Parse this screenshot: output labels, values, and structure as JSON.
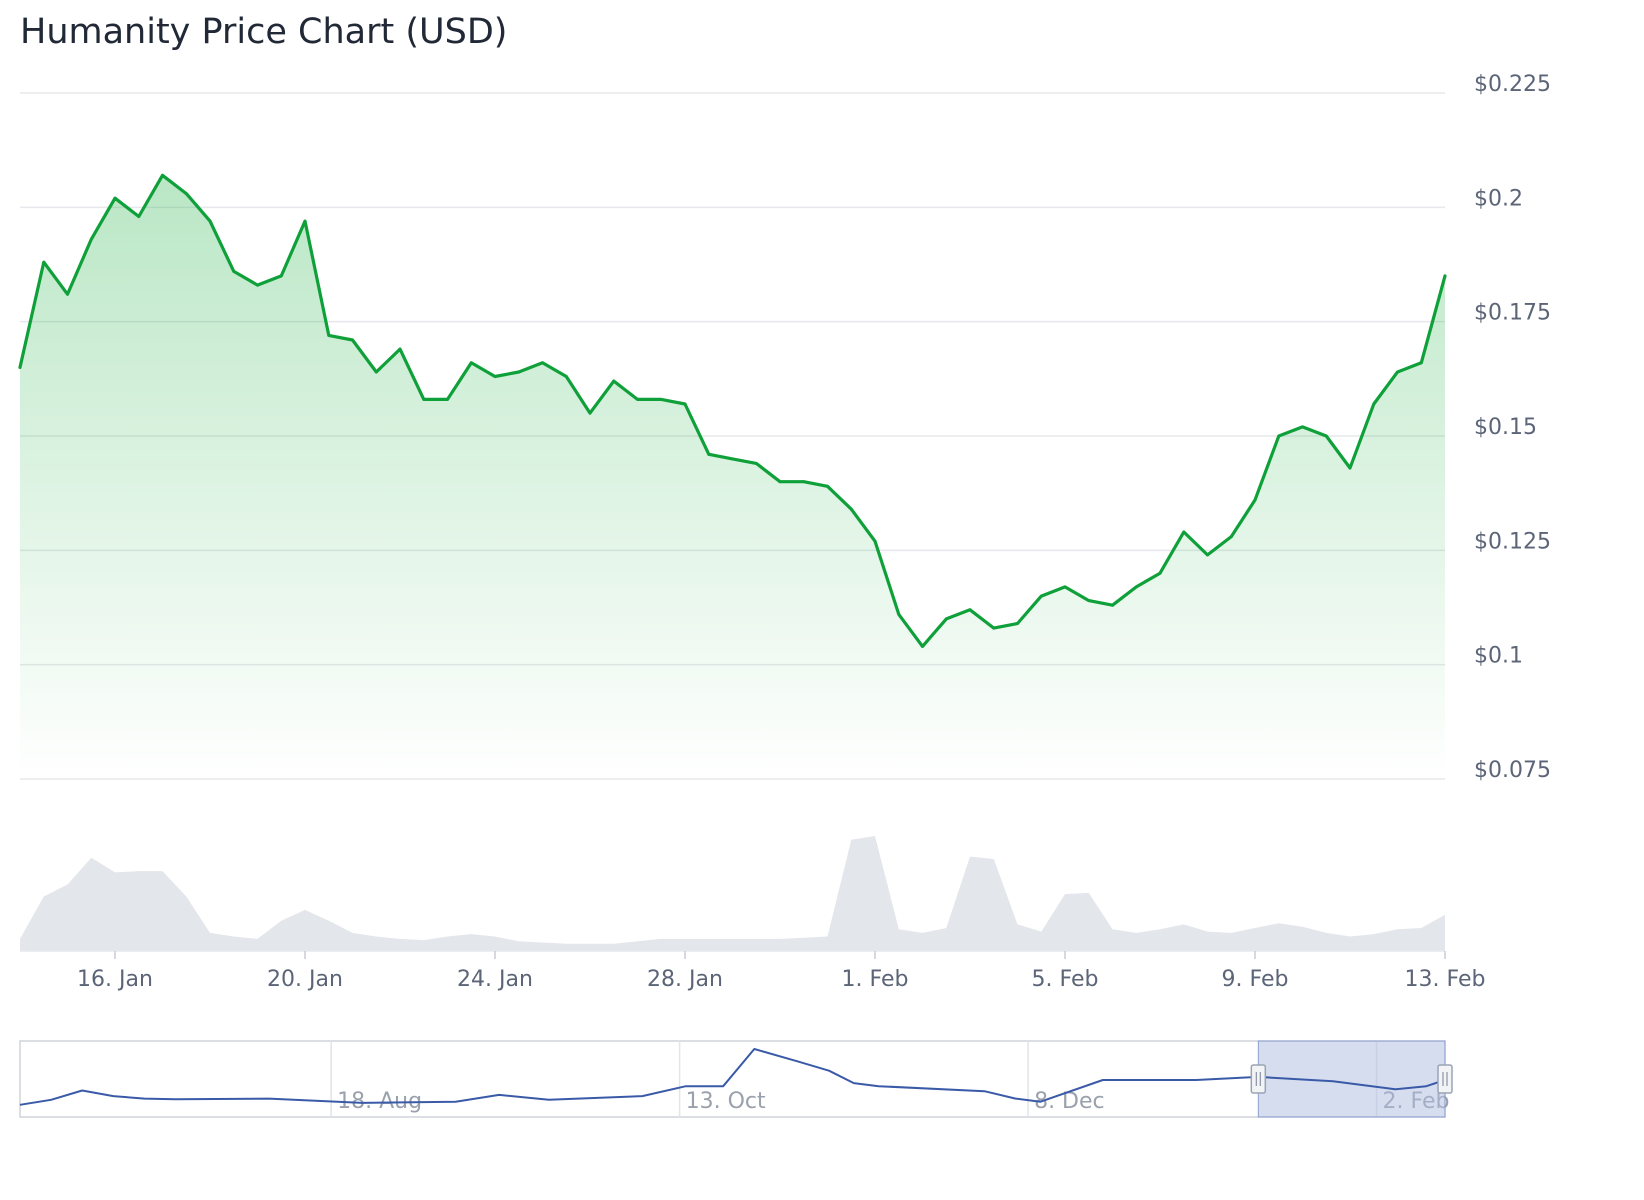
{
  "title": "Humanity Price Chart (USD)",
  "colors": {
    "price_line": "#0fa03a",
    "area_fill": "#27b34a",
    "volume": "#e3e6ea",
    "gridline": "#e6e8ec",
    "navigator_line": "#3a5aa8",
    "navigator_selection": "#aebce0"
  },
  "chart_data": {
    "type": "line",
    "price": {
      "name": "Price",
      "x_unit": "date",
      "x_start": "2025-01-14",
      "x_end": "2025-02-13",
      "y_unit": "USD",
      "ylim": [
        0.075,
        0.225
      ],
      "y_ticks": [
        0.075,
        0.1,
        0.125,
        0.15,
        0.175,
        0.2,
        0.225
      ],
      "y_tick_labels": [
        "$0.075",
        "$0.1",
        "$0.125",
        "$0.15",
        "$0.175",
        "$0.2",
        "$0.225"
      ],
      "x_ticks": [
        "2025-01-16",
        "2025-01-20",
        "2025-01-24",
        "2025-01-28",
        "2025-02-01",
        "2025-02-05",
        "2025-02-09",
        "2025-02-13"
      ],
      "x_tick_labels": [
        "16. Jan",
        "20. Jan",
        "24. Jan",
        "28. Jan",
        "1. Feb",
        "5. Feb",
        "9. Feb",
        "13. Feb"
      ],
      "grid": true,
      "area_fill": true,
      "points": [
        [
          "2025-01-14",
          0.165
        ],
        [
          "2025-01-14T12:00",
          0.188
        ],
        [
          "2025-01-15",
          0.181
        ],
        [
          "2025-01-15T12:00",
          0.193
        ],
        [
          "2025-01-16",
          0.202
        ],
        [
          "2025-01-16T12:00",
          0.198
        ],
        [
          "2025-01-17",
          0.207
        ],
        [
          "2025-01-17T12:00",
          0.203
        ],
        [
          "2025-01-18",
          0.197
        ],
        [
          "2025-01-18T12:00",
          0.186
        ],
        [
          "2025-01-19",
          0.183
        ],
        [
          "2025-01-19T12:00",
          0.185
        ],
        [
          "2025-01-20",
          0.197
        ],
        [
          "2025-01-20T12:00",
          0.172
        ],
        [
          "2025-01-21",
          0.171
        ],
        [
          "2025-01-21T12:00",
          0.164
        ],
        [
          "2025-01-22",
          0.169
        ],
        [
          "2025-01-22T12:00",
          0.158
        ],
        [
          "2025-01-23",
          0.158
        ],
        [
          "2025-01-23T12:00",
          0.166
        ],
        [
          "2025-01-24",
          0.163
        ],
        [
          "2025-01-24T12:00",
          0.164
        ],
        [
          "2025-01-25",
          0.166
        ],
        [
          "2025-01-25T12:00",
          0.163
        ],
        [
          "2025-01-26",
          0.155
        ],
        [
          "2025-01-26T12:00",
          0.162
        ],
        [
          "2025-01-27",
          0.158
        ],
        [
          "2025-01-27T12:00",
          0.158
        ],
        [
          "2025-01-28",
          0.157
        ],
        [
          "2025-01-28T12:00",
          0.146
        ],
        [
          "2025-01-29",
          0.145
        ],
        [
          "2025-01-29T12:00",
          0.144
        ],
        [
          "2025-01-30",
          0.14
        ],
        [
          "2025-01-30T12:00",
          0.14
        ],
        [
          "2025-01-31",
          0.139
        ],
        [
          "2025-01-31T12:00",
          0.134
        ],
        [
          "2025-02-01",
          0.127
        ],
        [
          "2025-02-01T12:00",
          0.111
        ],
        [
          "2025-02-02",
          0.104
        ],
        [
          "2025-02-02T12:00",
          0.11
        ],
        [
          "2025-02-03",
          0.112
        ],
        [
          "2025-02-03T12:00",
          0.108
        ],
        [
          "2025-02-04",
          0.109
        ],
        [
          "2025-02-04T12:00",
          0.115
        ],
        [
          "2025-02-05",
          0.117
        ],
        [
          "2025-02-05T12:00",
          0.114
        ],
        [
          "2025-02-06",
          0.113
        ],
        [
          "2025-02-06T12:00",
          0.117
        ],
        [
          "2025-02-07",
          0.12
        ],
        [
          "2025-02-07T12:00",
          0.129
        ],
        [
          "2025-02-08",
          0.124
        ],
        [
          "2025-02-08T12:00",
          0.128
        ],
        [
          "2025-02-09",
          0.136
        ],
        [
          "2025-02-09T12:00",
          0.15
        ],
        [
          "2025-02-10",
          0.152
        ],
        [
          "2025-02-10T12:00",
          0.15
        ],
        [
          "2025-02-11",
          0.143
        ],
        [
          "2025-02-11T12:00",
          0.157
        ],
        [
          "2025-02-12",
          0.164
        ],
        [
          "2025-02-12T12:00",
          0.166
        ],
        [
          "2025-02-13",
          0.185
        ]
      ]
    },
    "volume": {
      "name": "Volume",
      "scale": "relative",
      "ylim": [
        0,
        1
      ],
      "points": [
        [
          "2025-01-14",
          0.1
        ],
        [
          "2025-01-14T12:00",
          0.45
        ],
        [
          "2025-01-15",
          0.55
        ],
        [
          "2025-01-15T12:00",
          0.77
        ],
        [
          "2025-01-16",
          0.65
        ],
        [
          "2025-01-16T12:00",
          0.66
        ],
        [
          "2025-01-17",
          0.66
        ],
        [
          "2025-01-17T12:00",
          0.45
        ],
        [
          "2025-01-18",
          0.15
        ],
        [
          "2025-01-18T12:00",
          0.12
        ],
        [
          "2025-01-19",
          0.1
        ],
        [
          "2025-01-19T12:00",
          0.25
        ],
        [
          "2025-01-20",
          0.34
        ],
        [
          "2025-01-20T12:00",
          0.25
        ],
        [
          "2025-01-21",
          0.15
        ],
        [
          "2025-01-21T12:00",
          0.12
        ],
        [
          "2025-01-22",
          0.1
        ],
        [
          "2025-01-22T12:00",
          0.09
        ],
        [
          "2025-01-23",
          0.12
        ],
        [
          "2025-01-23T12:00",
          0.14
        ],
        [
          "2025-01-24",
          0.12
        ],
        [
          "2025-01-24T12:00",
          0.08
        ],
        [
          "2025-01-25",
          0.07
        ],
        [
          "2025-01-25T12:00",
          0.06
        ],
        [
          "2025-01-26",
          0.06
        ],
        [
          "2025-01-26T12:00",
          0.06
        ],
        [
          "2025-01-27",
          0.08
        ],
        [
          "2025-01-27T12:00",
          0.1
        ],
        [
          "2025-01-28",
          0.1
        ],
        [
          "2025-01-28T12:00",
          0.1
        ],
        [
          "2025-01-29",
          0.1
        ],
        [
          "2025-01-29T12:00",
          0.1
        ],
        [
          "2025-01-30",
          0.1
        ],
        [
          "2025-01-30T12:00",
          0.11
        ],
        [
          "2025-01-31",
          0.12
        ],
        [
          "2025-01-31T12:00",
          0.92
        ],
        [
          "2025-02-01",
          0.95
        ],
        [
          "2025-02-01T12:00",
          0.18
        ],
        [
          "2025-02-02",
          0.15
        ],
        [
          "2025-02-02T12:00",
          0.19
        ],
        [
          "2025-02-03",
          0.78
        ],
        [
          "2025-02-03T12:00",
          0.76
        ],
        [
          "2025-02-04",
          0.22
        ],
        [
          "2025-02-04T12:00",
          0.16
        ],
        [
          "2025-02-05",
          0.47
        ],
        [
          "2025-02-05T12:00",
          0.48
        ],
        [
          "2025-02-06",
          0.18
        ],
        [
          "2025-02-06T12:00",
          0.15
        ],
        [
          "2025-02-07",
          0.18
        ],
        [
          "2025-02-07T12:00",
          0.22
        ],
        [
          "2025-02-08",
          0.16
        ],
        [
          "2025-02-08T12:00",
          0.15
        ],
        [
          "2025-02-09",
          0.19
        ],
        [
          "2025-02-09T12:00",
          0.23
        ],
        [
          "2025-02-10",
          0.2
        ],
        [
          "2025-02-10T12:00",
          0.15
        ],
        [
          "2025-02-11",
          0.12
        ],
        [
          "2025-02-11T12:00",
          0.14
        ],
        [
          "2025-02-12",
          0.18
        ],
        [
          "2025-02-12T12:00",
          0.19
        ],
        [
          "2025-02-13",
          0.3
        ]
      ]
    },
    "navigator": {
      "x_unit": "date",
      "x_start": "2024-06-29",
      "x_end": "2025-02-13",
      "x_ticks": [
        "2024-08-18",
        "2024-10-13",
        "2024-12-08",
        "2025-02-02"
      ],
      "x_tick_labels": [
        "18. Aug",
        "13. Oct",
        "8. Dec",
        "2. Feb"
      ],
      "selection": [
        "2025-01-14",
        "2025-02-13"
      ],
      "points": [
        [
          "2024-06-29",
          0.1
        ],
        [
          "2024-07-04",
          0.18
        ],
        [
          "2024-07-09",
          0.33
        ],
        [
          "2024-07-14",
          0.24
        ],
        [
          "2024-07-19",
          0.2
        ],
        [
          "2024-07-24",
          0.19
        ],
        [
          "2024-08-08",
          0.2
        ],
        [
          "2024-08-23",
          0.13
        ],
        [
          "2024-09-07",
          0.15
        ],
        [
          "2024-09-14",
          0.26
        ],
        [
          "2024-09-22",
          0.18
        ],
        [
          "2024-10-07",
          0.24
        ],
        [
          "2024-10-14",
          0.4
        ],
        [
          "2024-10-20",
          0.4
        ],
        [
          "2024-10-25",
          1
        ],
        [
          "2024-11-01",
          0.8
        ],
        [
          "2024-11-06",
          0.65
        ],
        [
          "2024-11-10",
          0.45
        ],
        [
          "2024-11-14",
          0.4
        ],
        [
          "2024-12-01",
          0.32
        ],
        [
          "2024-12-06",
          0.2
        ],
        [
          "2024-12-10",
          0.15
        ],
        [
          "2024-12-20",
          0.5
        ],
        [
          "2025-01-04",
          0.5
        ],
        [
          "2025-01-14",
          0.55
        ],
        [
          "2025-01-26",
          0.48
        ],
        [
          "2025-02-05",
          0.35
        ],
        [
          "2025-02-10",
          0.4
        ],
        [
          "2025-02-13",
          0.5
        ]
      ]
    }
  }
}
